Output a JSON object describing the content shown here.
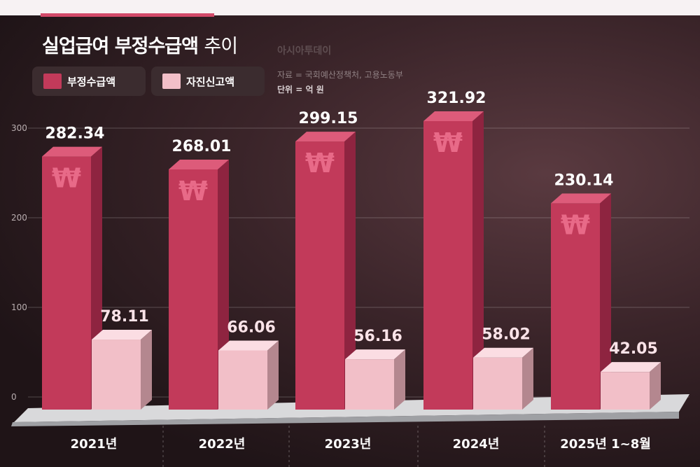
{
  "header": {
    "title_bold": "실업급여 부정수급액",
    "title_light": "추이",
    "brand": "아시아투데이",
    "source": "자료 = 국회예산정책처, 고용노동부",
    "unit": "단위 = 억 원"
  },
  "legend": [
    {
      "label": "부정수급액",
      "color": "#c23a5a"
    },
    {
      "label": "자진신고액",
      "color": "#f2bfc8"
    }
  ],
  "colors": {
    "fraud": "#c23a5a",
    "self_report": "#f2bfc8",
    "currency_mark": "#e86a88"
  },
  "chart_data": {
    "type": "bar",
    "categories": [
      "2021년",
      "2022년",
      "2023년",
      "2024년",
      "2025년 1~8월"
    ],
    "series": [
      {
        "name": "부정수급액",
        "values": [
          282.34,
          268.01,
          299.15,
          321.92,
          230.14
        ],
        "labels": [
          "282.34",
          "268.01",
          "299.15",
          "321.92",
          "230.14"
        ]
      },
      {
        "name": "자진신고액",
        "values": [
          78.11,
          66.06,
          56.16,
          58.02,
          42.05
        ],
        "labels": [
          "78.11",
          "66.06",
          "56.16",
          "58.02",
          "42.05"
        ]
      }
    ],
    "yticks": [
      "0",
      "100",
      "200",
      "300"
    ],
    "ylim": [
      0,
      330
    ],
    "currency_symbol": "₩",
    "grid": true,
    "legend_position": "top-left"
  }
}
